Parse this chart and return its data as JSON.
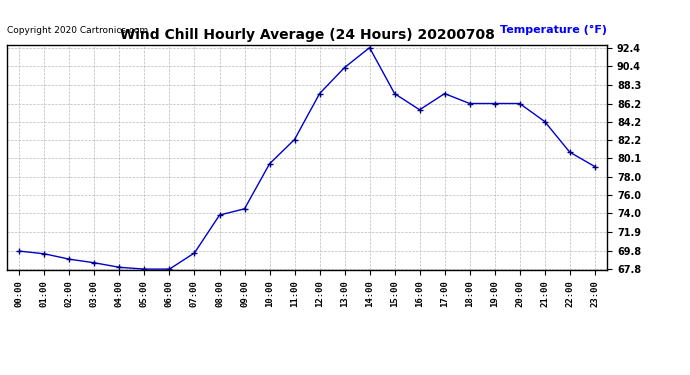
{
  "title": "Wind Chill Hourly Average (24 Hours) 20200708",
  "ylabel_text": "Temperature (°F)",
  "copyright_text": "Copyright 2020 Cartronics.com",
  "hours": [
    0,
    1,
    2,
    3,
    4,
    5,
    6,
    7,
    8,
    9,
    10,
    11,
    12,
    13,
    14,
    15,
    16,
    17,
    18,
    19,
    20,
    21,
    22,
    23
  ],
  "values": [
    69.8,
    69.5,
    68.9,
    68.5,
    68.0,
    67.8,
    67.8,
    69.6,
    73.8,
    74.5,
    79.5,
    82.2,
    87.3,
    90.2,
    92.4,
    87.3,
    85.5,
    87.3,
    86.2,
    86.2,
    86.2,
    84.2,
    80.8,
    79.2
  ],
  "line_color": "#0000cc",
  "marker_color": "#000080",
  "background_color": "#ffffff",
  "grid_color": "#bbbbbb",
  "ylabel_color": "#0000ff",
  "ylim_min": 67.8,
  "ylim_max": 92.4,
  "ytick_values": [
    67.8,
    69.8,
    71.9,
    74.0,
    76.0,
    78.0,
    80.1,
    82.2,
    84.2,
    86.2,
    88.3,
    90.4,
    92.4
  ]
}
